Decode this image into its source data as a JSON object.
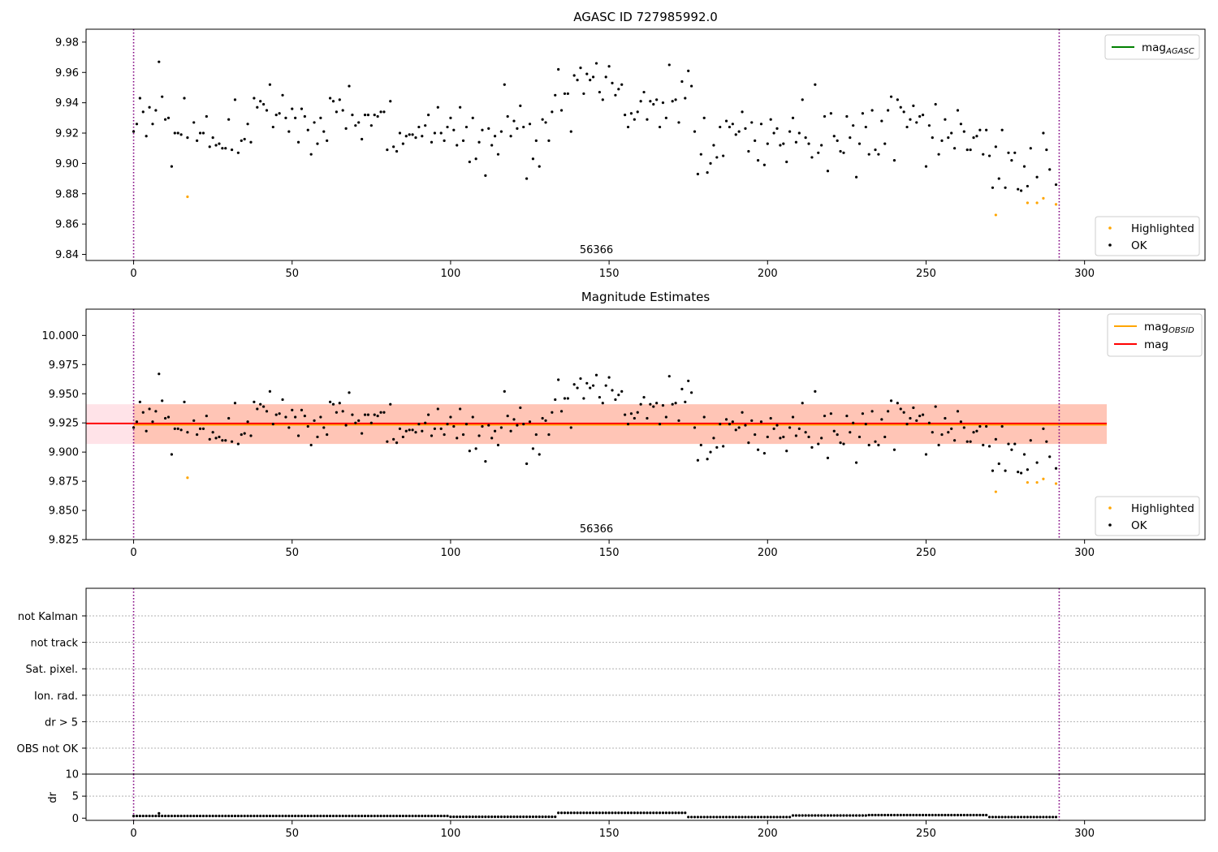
{
  "figure": {
    "width": 1500,
    "height": 1050
  },
  "colors": {
    "ok": "#000000",
    "highlighted": "#ffa500",
    "mag_agasc": "#008000",
    "mag_obsid": "#ffa500",
    "mag": "#ff0000",
    "band_mag": "#ffc0cb",
    "band_obsid": "#ffa07a",
    "obs_boundary": "#800080"
  },
  "chart_data": [
    {
      "id": "top",
      "type": "scatter",
      "title": "AGASC ID 727985992.0",
      "xlim": [
        -15,
        338
      ],
      "ylim": [
        9.836,
        9.9885
      ],
      "xticks": [
        0,
        50,
        100,
        150,
        200,
        250,
        300
      ],
      "yticks": [
        9.84,
        9.86,
        9.88,
        9.9,
        9.92,
        9.94,
        9.96,
        9.98
      ],
      "ytick_decimals": 2,
      "vlines": [
        0,
        292
      ],
      "annotation": {
        "text": "56366",
        "x": 146
      },
      "legend_lines": [
        {
          "label": "mag",
          "sub": "AGASC",
          "color": "#008000"
        }
      ],
      "legend_points": [
        {
          "label": "Highlighted",
          "color": "#ffa500"
        },
        {
          "label": "OK",
          "color": "#000000"
        }
      ]
    },
    {
      "id": "mid",
      "type": "scatter",
      "title": "Magnitude Estimates",
      "xlim": [
        -15,
        338
      ],
      "ylim": [
        9.825,
        10.0225
      ],
      "xticks": [
        0,
        50,
        100,
        150,
        200,
        250,
        300
      ],
      "yticks": [
        9.825,
        9.85,
        9.875,
        9.9,
        9.925,
        9.95,
        9.975,
        10.0
      ],
      "ytick_decimals": 3,
      "vlines": [
        0,
        292
      ],
      "annotation": {
        "text": "56366",
        "x": 146
      },
      "mag": 9.9245,
      "mag_obsid": 9.9235,
      "band_mag": {
        "x": [
          -15,
          307
        ],
        "y": [
          9.907,
          9.941
        ]
      },
      "band_obsid": {
        "x": [
          0,
          307
        ],
        "y": [
          9.907,
          9.941
        ]
      },
      "legend_lines": [
        {
          "label": "mag",
          "sub": "OBSID",
          "color": "#ffa500"
        },
        {
          "label": "mag",
          "sub": "",
          "color": "#ff0000"
        }
      ],
      "legend_points": [
        {
          "label": "Highlighted",
          "color": "#ffa500"
        },
        {
          "label": "OK",
          "color": "#000000"
        }
      ]
    },
    {
      "id": "flags",
      "type": "scatter",
      "xlim": [
        -15,
        338
      ],
      "categories": [
        "OBS not OK",
        "dr > 5",
        "Ion. rad.",
        "Sat. pixel.",
        "not track",
        "not Kalman"
      ],
      "vlines": [
        0,
        292
      ]
    },
    {
      "id": "dr",
      "type": "scatter",
      "ylabel": "dr",
      "xlim": [
        -15,
        338
      ],
      "ylim": [
        -0.5,
        10
      ],
      "xticks": [
        0,
        50,
        100,
        150,
        200,
        250,
        300
      ],
      "yticks": [
        0,
        5,
        10
      ],
      "vlines": [
        0,
        292
      ]
    }
  ],
  "series": {
    "ok": [
      [
        0,
        9.921
      ],
      [
        1,
        9.926
      ],
      [
        2,
        9.943
      ],
      [
        3,
        9.934
      ],
      [
        4,
        9.918
      ],
      [
        5,
        9.937
      ],
      [
        6,
        9.926
      ],
      [
        7,
        9.935
      ],
      [
        8,
        9.967
      ],
      [
        9,
        9.944
      ],
      [
        10,
        9.929
      ],
      [
        11,
        9.93
      ],
      [
        12,
        9.898
      ],
      [
        13,
        9.92
      ],
      [
        14,
        9.92
      ],
      [
        15,
        9.919
      ],
      [
        16,
        9.943
      ],
      [
        17,
        9.917
      ],
      [
        19,
        9.927
      ],
      [
        20,
        9.915
      ],
      [
        21,
        9.92
      ],
      [
        22,
        9.92
      ],
      [
        23,
        9.931
      ],
      [
        24,
        9.911
      ],
      [
        25,
        9.917
      ],
      [
        26,
        9.912
      ],
      [
        27,
        9.913
      ],
      [
        28,
        9.91
      ],
      [
        29,
        9.91
      ],
      [
        30,
        9.929
      ],
      [
        31,
        9.909
      ],
      [
        32,
        9.942
      ],
      [
        33,
        9.907
      ],
      [
        34,
        9.915
      ],
      [
        35,
        9.916
      ],
      [
        36,
        9.926
      ],
      [
        37,
        9.914
      ],
      [
        38,
        9.943
      ],
      [
        39,
        9.937
      ],
      [
        40,
        9.941
      ],
      [
        41,
        9.939
      ],
      [
        42,
        9.935
      ],
      [
        43,
        9.952
      ],
      [
        44,
        9.924
      ],
      [
        45,
        9.932
      ],
      [
        46,
        9.933
      ],
      [
        47,
        9.945
      ],
      [
        48,
        9.93
      ],
      [
        49,
        9.921
      ],
      [
        50,
        9.936
      ],
      [
        51,
        9.93
      ],
      [
        52,
        9.914
      ],
      [
        53,
        9.936
      ],
      [
        54,
        9.931
      ],
      [
        55,
        9.922
      ],
      [
        56,
        9.906
      ],
      [
        57,
        9.927
      ],
      [
        58,
        9.913
      ],
      [
        59,
        9.93
      ],
      [
        60,
        9.921
      ],
      [
        61,
        9.915
      ],
      [
        62,
        9.943
      ],
      [
        63,
        9.941
      ],
      [
        64,
        9.934
      ],
      [
        65,
        9.942
      ],
      [
        66,
        9.935
      ],
      [
        67,
        9.923
      ],
      [
        68,
        9.951
      ],
      [
        69,
        9.932
      ],
      [
        70,
        9.925
      ],
      [
        71,
        9.927
      ],
      [
        72,
        9.916
      ],
      [
        73,
        9.932
      ],
      [
        74,
        9.932
      ],
      [
        75,
        9.925
      ],
      [
        76,
        9.932
      ],
      [
        77,
        9.931
      ],
      [
        78,
        9.934
      ],
      [
        79,
        9.934
      ],
      [
        80,
        9.909
      ],
      [
        81,
        9.941
      ],
      [
        82,
        9.911
      ],
      [
        83,
        9.908
      ],
      [
        84,
        9.92
      ],
      [
        85,
        9.913
      ],
      [
        86,
        9.918
      ],
      [
        87,
        9.919
      ],
      [
        88,
        9.919
      ],
      [
        89,
        9.917
      ],
      [
        90,
        9.924
      ],
      [
        91,
        9.918
      ],
      [
        92,
        9.925
      ],
      [
        93,
        9.932
      ],
      [
        94,
        9.914
      ],
      [
        95,
        9.92
      ],
      [
        96,
        9.937
      ],
      [
        97,
        9.92
      ],
      [
        98,
        9.915
      ],
      [
        99,
        9.924
      ],
      [
        100,
        9.93
      ],
      [
        101,
        9.922
      ],
      [
        102,
        9.912
      ],
      [
        103,
        9.937
      ],
      [
        104,
        9.915
      ],
      [
        105,
        9.924
      ],
      [
        106,
        9.901
      ],
      [
        107,
        9.93
      ],
      [
        108,
        9.903
      ],
      [
        109,
        9.914
      ],
      [
        110,
        9.922
      ],
      [
        111,
        9.892
      ],
      [
        112,
        9.923
      ],
      [
        113,
        9.912
      ],
      [
        114,
        9.918
      ],
      [
        115,
        9.906
      ],
      [
        116,
        9.921
      ],
      [
        117,
        9.952
      ],
      [
        118,
        9.931
      ],
      [
        119,
        9.918
      ],
      [
        120,
        9.928
      ],
      [
        121,
        9.923
      ],
      [
        122,
        9.938
      ],
      [
        123,
        9.924
      ],
      [
        124,
        9.89
      ],
      [
        125,
        9.926
      ],
      [
        126,
        9.903
      ],
      [
        127,
        9.915
      ],
      [
        128,
        9.898
      ],
      [
        129,
        9.929
      ],
      [
        130,
        9.927
      ],
      [
        131,
        9.915
      ],
      [
        132,
        9.934
      ],
      [
        133,
        9.945
      ],
      [
        134,
        9.962
      ],
      [
        135,
        9.935
      ],
      [
        136,
        9.946
      ],
      [
        137,
        9.946
      ],
      [
        138,
        9.921
      ],
      [
        139,
        9.958
      ],
      [
        140,
        9.955
      ],
      [
        141,
        9.963
      ],
      [
        142,
        9.946
      ],
      [
        143,
        9.959
      ],
      [
        144,
        9.955
      ],
      [
        145,
        9.957
      ],
      [
        146,
        9.966
      ],
      [
        147,
        9.947
      ],
      [
        148,
        9.942
      ],
      [
        149,
        9.957
      ],
      [
        150,
        9.964
      ],
      [
        151,
        9.953
      ],
      [
        152,
        9.945
      ],
      [
        153,
        9.949
      ],
      [
        154,
        9.952
      ],
      [
        155,
        9.932
      ],
      [
        156,
        9.924
      ],
      [
        157,
        9.933
      ],
      [
        158,
        9.929
      ],
      [
        159,
        9.934
      ],
      [
        160,
        9.941
      ],
      [
        161,
        9.947
      ],
      [
        162,
        9.929
      ],
      [
        163,
        9.941
      ],
      [
        164,
        9.939
      ],
      [
        165,
        9.942
      ],
      [
        166,
        9.924
      ],
      [
        167,
        9.94
      ],
      [
        168,
        9.93
      ],
      [
        169,
        9.965
      ],
      [
        170,
        9.941
      ],
      [
        171,
        9.942
      ],
      [
        172,
        9.927
      ],
      [
        173,
        9.954
      ],
      [
        174,
        9.943
      ],
      [
        175,
        9.961
      ],
      [
        176,
        9.951
      ],
      [
        177,
        9.921
      ],
      [
        178,
        9.893
      ],
      [
        179,
        9.906
      ],
      [
        180,
        9.93
      ],
      [
        181,
        9.894
      ],
      [
        182,
        9.9
      ],
      [
        183,
        9.912
      ],
      [
        184,
        9.904
      ],
      [
        185,
        9.924
      ],
      [
        186,
        9.905
      ],
      [
        187,
        9.928
      ],
      [
        188,
        9.924
      ],
      [
        189,
        9.926
      ],
      [
        190,
        9.919
      ],
      [
        191,
        9.921
      ],
      [
        192,
        9.934
      ],
      [
        193,
        9.923
      ],
      [
        194,
        9.908
      ],
      [
        195,
        9.927
      ],
      [
        196,
        9.915
      ],
      [
        197,
        9.902
      ],
      [
        198,
        9.926
      ],
      [
        199,
        9.899
      ],
      [
        200,
        9.913
      ],
      [
        201,
        9.929
      ],
      [
        202,
        9.92
      ],
      [
        203,
        9.923
      ],
      [
        204,
        9.912
      ],
      [
        205,
        9.913
      ],
      [
        206,
        9.901
      ],
      [
        207,
        9.921
      ],
      [
        208,
        9.93
      ],
      [
        209,
        9.914
      ],
      [
        210,
        9.92
      ],
      [
        211,
        9.942
      ],
      [
        212,
        9.917
      ],
      [
        213,
        9.913
      ],
      [
        214,
        9.904
      ],
      [
        215,
        9.952
      ],
      [
        216,
        9.907
      ],
      [
        217,
        9.912
      ],
      [
        218,
        9.931
      ],
      [
        219,
        9.895
      ],
      [
        220,
        9.933
      ],
      [
        221,
        9.918
      ],
      [
        222,
        9.915
      ],
      [
        223,
        9.908
      ],
      [
        224,
        9.907
      ],
      [
        225,
        9.931
      ],
      [
        226,
        9.917
      ],
      [
        227,
        9.925
      ],
      [
        228,
        9.891
      ],
      [
        229,
        9.913
      ],
      [
        230,
        9.933
      ],
      [
        231,
        9.924
      ],
      [
        232,
        9.906
      ],
      [
        233,
        9.935
      ],
      [
        234,
        9.909
      ],
      [
        235,
        9.906
      ],
      [
        236,
        9.928
      ],
      [
        237,
        9.913
      ],
      [
        238,
        9.935
      ],
      [
        239,
        9.944
      ],
      [
        240,
        9.902
      ],
      [
        241,
        9.942
      ],
      [
        242,
        9.937
      ],
      [
        243,
        9.934
      ],
      [
        244,
        9.924
      ],
      [
        245,
        9.929
      ],
      [
        246,
        9.938
      ],
      [
        247,
        9.927
      ],
      [
        248,
        9.931
      ],
      [
        249,
        9.932
      ],
      [
        250,
        9.898
      ],
      [
        251,
        9.925
      ],
      [
        252,
        9.917
      ],
      [
        253,
        9.939
      ],
      [
        254,
        9.906
      ],
      [
        255,
        9.915
      ],
      [
        256,
        9.929
      ],
      [
        257,
        9.917
      ],
      [
        258,
        9.92
      ],
      [
        259,
        9.91
      ],
      [
        260,
        9.935
      ],
      [
        261,
        9.926
      ],
      [
        262,
        9.921
      ],
      [
        263,
        9.909
      ],
      [
        264,
        9.909
      ],
      [
        265,
        9.917
      ],
      [
        266,
        9.918
      ],
      [
        267,
        9.922
      ],
      [
        268,
        9.906
      ],
      [
        269,
        9.922
      ],
      [
        270,
        9.905
      ],
      [
        271,
        9.884
      ],
      [
        272,
        9.911
      ],
      [
        273,
        9.89
      ],
      [
        274,
        9.922
      ],
      [
        275,
        9.884
      ],
      [
        276,
        9.907
      ],
      [
        277,
        9.902
      ],
      [
        278,
        9.907
      ],
      [
        279,
        9.883
      ],
      [
        280,
        9.882
      ],
      [
        281,
        9.898
      ],
      [
        282,
        9.885
      ],
      [
        283,
        9.91
      ],
      [
        285,
        9.891
      ],
      [
        287,
        9.92
      ],
      [
        288,
        9.909
      ],
      [
        289,
        9.896
      ],
      [
        291,
        9.886
      ]
    ],
    "highlighted": [
      [
        17,
        9.878
      ],
      [
        272,
        9.866
      ],
      [
        282,
        9.874
      ],
      [
        285,
        9.874
      ],
      [
        287,
        9.877
      ],
      [
        291,
        9.873
      ]
    ],
    "dr": {
      "segments": [
        {
          "from": 0,
          "to": 99,
          "value": 0.5
        },
        {
          "from": 100,
          "to": 133,
          "value": 0.3
        },
        {
          "from": 134,
          "to": 174,
          "value": 1.2
        },
        {
          "from": 175,
          "to": 207,
          "value": 0.25
        },
        {
          "from": 208,
          "to": 231,
          "value": 0.6
        },
        {
          "from": 232,
          "to": 269,
          "value": 0.7
        },
        {
          "from": 270,
          "to": 291,
          "value": 0.25
        }
      ],
      "outlier": [
        8,
        1.1
      ]
    }
  }
}
